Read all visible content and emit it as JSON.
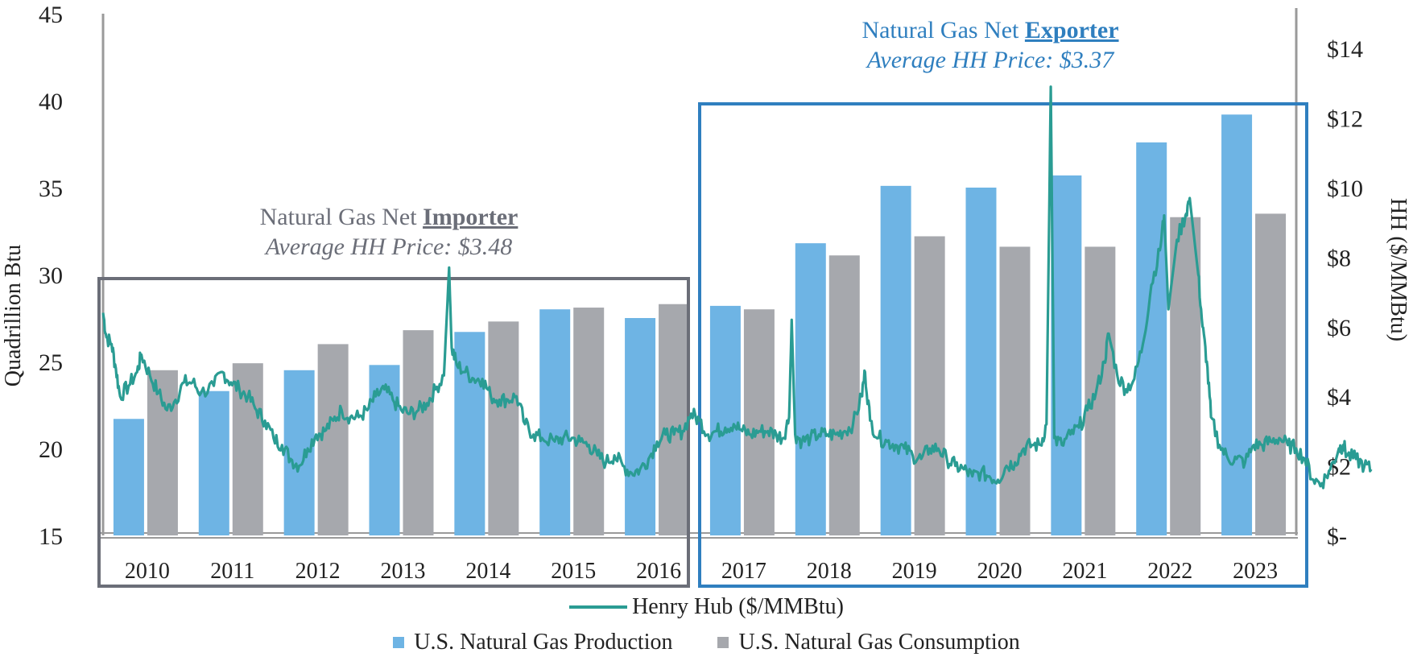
{
  "chart_data": {
    "type": "bar",
    "categories": [
      "2010",
      "2011",
      "2012",
      "2013",
      "2014",
      "2015",
      "2016",
      "2017",
      "2018",
      "2019",
      "2020",
      "2021",
      "2022",
      "2023"
    ],
    "series": [
      {
        "name": "U.S. Natural Gas Production",
        "color": "#6eb4e4",
        "values": [
          21.7,
          23.3,
          24.5,
          24.8,
          26.7,
          28.0,
          27.5,
          28.2,
          31.8,
          35.1,
          35.0,
          35.7,
          37.6,
          39.2
        ]
      },
      {
        "name": "U.S. Natural Gas Consumption",
        "color": "#a6a8ad",
        "values": [
          24.5,
          24.9,
          26.0,
          26.8,
          27.3,
          28.1,
          28.3,
          28.0,
          31.1,
          32.2,
          31.6,
          31.6,
          33.3,
          33.5
        ]
      },
      {
        "name": "Henry Hub ($/MMBtu)",
        "type": "line",
        "axis": "right",
        "color": "#2a9c93",
        "points": [
          [
            2010.0,
            6.4
          ],
          [
            2010.04,
            5.7
          ],
          [
            2010.1,
            5.5
          ],
          [
            2010.15,
            4.8
          ],
          [
            2010.2,
            4.0
          ],
          [
            2010.3,
            4.3
          ],
          [
            2010.4,
            4.7
          ],
          [
            2010.45,
            5.2
          ],
          [
            2010.55,
            4.6
          ],
          [
            2010.65,
            4.1
          ],
          [
            2010.75,
            3.6
          ],
          [
            2010.85,
            3.9
          ],
          [
            2010.95,
            4.4
          ],
          [
            2011.05,
            4.4
          ],
          [
            2011.15,
            4.1
          ],
          [
            2011.3,
            4.3
          ],
          [
            2011.4,
            4.7
          ],
          [
            2011.5,
            4.4
          ],
          [
            2011.6,
            4.2
          ],
          [
            2011.7,
            4.0
          ],
          [
            2011.8,
            3.6
          ],
          [
            2011.9,
            3.3
          ],
          [
            2012.0,
            2.8
          ],
          [
            2012.1,
            2.6
          ],
          [
            2012.2,
            2.2
          ],
          [
            2012.3,
            2.0
          ],
          [
            2012.4,
            2.5
          ],
          [
            2012.5,
            2.9
          ],
          [
            2012.6,
            3.0
          ],
          [
            2012.7,
            3.3
          ],
          [
            2012.8,
            3.6
          ],
          [
            2012.9,
            3.4
          ],
          [
            2013.0,
            3.4
          ],
          [
            2013.1,
            3.6
          ],
          [
            2013.2,
            4.0
          ],
          [
            2013.3,
            4.2
          ],
          [
            2013.4,
            3.9
          ],
          [
            2013.5,
            3.6
          ],
          [
            2013.6,
            3.5
          ],
          [
            2013.7,
            3.6
          ],
          [
            2013.8,
            3.8
          ],
          [
            2013.9,
            4.2
          ],
          [
            2014.0,
            4.6
          ],
          [
            2014.06,
            7.7
          ],
          [
            2014.09,
            5.4
          ],
          [
            2014.15,
            4.9
          ],
          [
            2014.25,
            4.7
          ],
          [
            2014.35,
            4.5
          ],
          [
            2014.45,
            4.5
          ],
          [
            2014.55,
            4.0
          ],
          [
            2014.65,
            3.9
          ],
          [
            2014.75,
            3.9
          ],
          [
            2014.85,
            4.0
          ],
          [
            2014.95,
            3.2
          ],
          [
            2015.05,
            2.9
          ],
          [
            2015.15,
            2.8
          ],
          [
            2015.3,
            2.7
          ],
          [
            2015.4,
            2.8
          ],
          [
            2015.5,
            2.8
          ],
          [
            2015.6,
            2.7
          ],
          [
            2015.7,
            2.6
          ],
          [
            2015.8,
            2.3
          ],
          [
            2015.9,
            2.1
          ],
          [
            2016.0,
            2.3
          ],
          [
            2016.1,
            2.0
          ],
          [
            2016.2,
            1.8
          ],
          [
            2016.3,
            1.9
          ],
          [
            2016.4,
            2.2
          ],
          [
            2016.5,
            2.7
          ],
          [
            2016.6,
            2.9
          ],
          [
            2016.7,
            2.9
          ],
          [
            2016.8,
            3.0
          ],
          [
            2016.9,
            3.5
          ],
          [
            2017.0,
            3.3
          ],
          [
            2017.1,
            2.9
          ],
          [
            2017.2,
            3.0
          ],
          [
            2017.3,
            3.1
          ],
          [
            2017.4,
            3.2
          ],
          [
            2017.5,
            3.0
          ],
          [
            2017.6,
            2.9
          ],
          [
            2017.7,
            3.0
          ],
          [
            2017.8,
            3.0
          ],
          [
            2017.9,
            2.9
          ],
          [
            2017.98,
            2.8
          ],
          [
            2018.05,
            3.4
          ],
          [
            2018.08,
            6.2
          ],
          [
            2018.12,
            2.9
          ],
          [
            2018.2,
            2.7
          ],
          [
            2018.3,
            2.8
          ],
          [
            2018.4,
            2.9
          ],
          [
            2018.5,
            2.9
          ],
          [
            2018.6,
            2.9
          ],
          [
            2018.7,
            3.0
          ],
          [
            2018.8,
            3.2
          ],
          [
            2018.9,
            4.0
          ],
          [
            2018.94,
            4.7
          ],
          [
            2019.0,
            3.3
          ],
          [
            2019.1,
            2.8
          ],
          [
            2019.2,
            2.7
          ],
          [
            2019.3,
            2.6
          ],
          [
            2019.4,
            2.5
          ],
          [
            2019.5,
            2.3
          ],
          [
            2019.6,
            2.2
          ],
          [
            2019.7,
            2.5
          ],
          [
            2019.8,
            2.5
          ],
          [
            2019.9,
            2.2
          ],
          [
            2020.0,
            2.0
          ],
          [
            2020.1,
            1.9
          ],
          [
            2020.2,
            1.7
          ],
          [
            2020.3,
            1.8
          ],
          [
            2020.4,
            1.7
          ],
          [
            2020.5,
            1.6
          ],
          [
            2020.6,
            2.0
          ],
          [
            2020.7,
            2.1
          ],
          [
            2020.8,
            2.5
          ],
          [
            2020.9,
            2.6
          ],
          [
            2021.0,
            2.6
          ],
          [
            2021.07,
            3.2
          ],
          [
            2021.12,
            12.9
          ],
          [
            2021.16,
            2.8
          ],
          [
            2021.25,
            2.6
          ],
          [
            2021.35,
            2.9
          ],
          [
            2021.45,
            3.1
          ],
          [
            2021.55,
            3.6
          ],
          [
            2021.65,
            4.1
          ],
          [
            2021.75,
            5.0
          ],
          [
            2021.8,
            5.8
          ],
          [
            2021.9,
            4.6
          ],
          [
            2022.0,
            4.2
          ],
          [
            2022.1,
            4.5
          ],
          [
            2022.2,
            5.5
          ],
          [
            2022.3,
            7.2
          ],
          [
            2022.4,
            8.2
          ],
          [
            2022.45,
            9.2
          ],
          [
            2022.5,
            6.5
          ],
          [
            2022.6,
            8.5
          ],
          [
            2022.7,
            9.2
          ],
          [
            2022.75,
            9.7
          ],
          [
            2022.85,
            7.5
          ],
          [
            2022.9,
            6.0
          ],
          [
            2022.95,
            5.0
          ],
          [
            2023.0,
            3.4
          ],
          [
            2023.1,
            2.6
          ],
          [
            2023.2,
            2.2
          ],
          [
            2023.3,
            2.2
          ],
          [
            2023.4,
            2.1
          ],
          [
            2023.5,
            2.6
          ],
          [
            2023.6,
            2.6
          ],
          [
            2023.7,
            2.7
          ],
          [
            2023.8,
            2.8
          ],
          [
            2023.9,
            2.6
          ],
          [
            2024.0,
            2.5
          ],
          [
            2024.1,
            2.2
          ],
          [
            2024.2,
            1.6
          ],
          [
            2024.3,
            1.5
          ],
          [
            2024.4,
            1.9
          ],
          [
            2024.5,
            2.5
          ],
          [
            2024.55,
            2.6
          ],
          [
            2024.6,
            2.3
          ],
          [
            2024.7,
            2.2
          ],
          [
            2024.8,
            2.0
          ],
          [
            2024.88,
            1.9
          ]
        ]
      }
    ],
    "ylabel": "Quadrillion Btu",
    "ylim": [
      15,
      45
    ],
    "yticks": [
      15,
      20,
      25,
      30,
      35,
      40,
      45
    ],
    "y2label": "HH ($/MMBtu)",
    "y2lim": [
      0,
      15
    ],
    "y2ticks": [
      0,
      2,
      4,
      6,
      8,
      10,
      12,
      14
    ],
    "y2ticklabels": [
      "$-",
      "$2",
      "$4",
      "$6",
      "$8",
      "$10",
      "$12",
      "$14"
    ],
    "regions": [
      {
        "name": "importer",
        "from_year": "2010",
        "to_year": "2016",
        "color": "#6b6e78",
        "title_prefix": "Natural Gas Net ",
        "title_bold": "Importer",
        "subtitle": "Average HH Price: $3.48"
      },
      {
        "name": "exporter",
        "from_year": "2017",
        "to_year": "2023",
        "color": "#2f7fbf",
        "title_prefix": "Natural Gas Net ",
        "title_bold": "Exporter",
        "subtitle": "Average HH Price: $3.37"
      }
    ],
    "legend": {
      "line_label": "Henry Hub ($/MMBtu)",
      "bar_labels": [
        "U.S. Natural Gas Production",
        "U.S. Natural Gas Consumption"
      ]
    }
  }
}
